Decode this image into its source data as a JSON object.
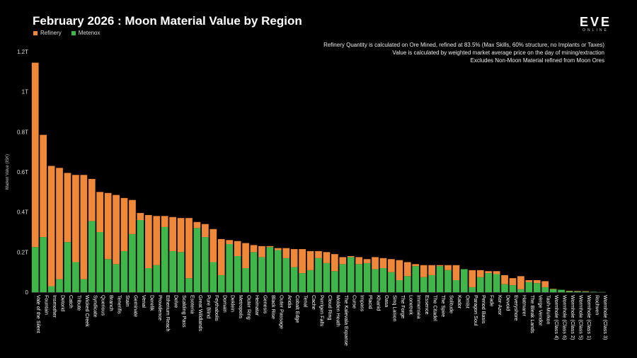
{
  "logo": {
    "text": "EVE",
    "sub": "ONLINE"
  },
  "notes": [
    "Refinery Quantity is calculated on Ore Mined, refined at 83.5% (Max Skills, 60% structure, no Implants or Taxes)",
    "Value is calculated by weighted market average price on the day of mining/extraction",
    "Excludes Non-Moon Material refined from Moon Ores"
  ],
  "chart_data": {
    "type": "bar",
    "stacked": true,
    "title": "February 2026 : Moon Material Value by Region",
    "ylabel": "Market Value (ISK)",
    "ylim": [
      0,
      1.2
    ],
    "yticks": [
      0,
      0.2,
      0.4,
      0.6,
      0.8,
      1.0,
      1.2
    ],
    "ytick_labels": [
      "0",
      "0.2T",
      "0.4T",
      "0.6T",
      "0.8T",
      "1T",
      "1.2T"
    ],
    "legend_position": "top-left",
    "categories": [
      "Vale of the Silent",
      "Fountain",
      "Insmother",
      "Detorid",
      "Catch",
      "Tribute",
      "Wicked Creek",
      "Syndicate",
      "Querious",
      "Branch",
      "Tenerifis",
      "Stain",
      "Geminate",
      "Venal",
      "Derelik",
      "Providence",
      "Etherium Reach",
      "Delve",
      "Scalding Pass",
      "Esoteria",
      "Great Wildlands",
      "Pure Blind",
      "Feythabolis",
      "Domain",
      "Deklein",
      "Metropolis",
      "Outer Ring",
      "Heimatar",
      "Genesis",
      "Black Rise",
      "Outer Passage",
      "Aridia",
      "Cobalt Edge",
      "Tenal",
      "Cache",
      "Perrigen Falls",
      "Cloud Ring",
      "Molden Heath",
      "The Kalevala Expanse",
      "Curse",
      "Impass",
      "Placid",
      "Khanid",
      "Oasa",
      "Sinq Laison",
      "The Forge",
      "Lonetrek",
      "Immensea",
      "Essence",
      "The Citadel",
      "The Spire",
      "Solitude",
      "Kador",
      "Omist",
      "Paragon Soul",
      "Period Basis",
      "Fade",
      "Kor-Azor",
      "Devoid",
      "Everyshore",
      "Hatmarer",
      "The Bleak Lands",
      "Verge Vendor",
      "Tash-Murkon",
      "Wormhole (Class 4)",
      "Wormhole (Class 6)",
      "Wormhole (Class 2)",
      "Wormhole (Class 5)",
      "Wormhole (Class 1)",
      "Rochven",
      "Wormhole (Class 3)"
    ],
    "series": [
      {
        "name": "Metenox",
        "color": "#3fb54a",
        "values": [
          0.225,
          0.275,
          0.03,
          0.065,
          0.25,
          0.15,
          0.065,
          0.355,
          0.3,
          0.165,
          0.14,
          0.205,
          0.29,
          0.36,
          0.12,
          0.135,
          0.325,
          0.205,
          0.2,
          0.07,
          0.32,
          0.275,
          0.15,
          0.085,
          0.24,
          0.18,
          0.12,
          0.2,
          0.175,
          0.225,
          0.21,
          0.17,
          0.125,
          0.095,
          0.11,
          0.17,
          0.145,
          0.105,
          0.14,
          0.175,
          0.14,
          0.145,
          0.115,
          0.12,
          0.1,
          0.06,
          0.08,
          0.13,
          0.075,
          0.085,
          0.13,
          0.11,
          0.06,
          0.115,
          0.025,
          0.075,
          0.095,
          0.09,
          0.04,
          0.035,
          0.015,
          0.05,
          0.045,
          0.025,
          0.015,
          0.012,
          0.005,
          0.004,
          0.003,
          0.002,
          0.001
        ]
      },
      {
        "name": "Refinery",
        "color": "#f0883a",
        "values": [
          0.92,
          0.51,
          0.6,
          0.555,
          0.345,
          0.435,
          0.52,
          0.21,
          0.2,
          0.33,
          0.345,
          0.265,
          0.17,
          0.035,
          0.265,
          0.245,
          0.055,
          0.17,
          0.17,
          0.3,
          0.03,
          0.065,
          0.165,
          0.18,
          0.02,
          0.075,
          0.125,
          0.035,
          0.055,
          0.005,
          0.01,
          0.05,
          0.09,
          0.12,
          0.095,
          0.035,
          0.055,
          0.085,
          0.035,
          0.005,
          0.035,
          0.02,
          0.06,
          0.05,
          0.065,
          0.1,
          0.07,
          0.01,
          0.06,
          0.05,
          0.005,
          0.025,
          0.075,
          0.0,
          0.085,
          0.035,
          0.01,
          0.015,
          0.045,
          0.035,
          0.065,
          0.01,
          0.015,
          0.03,
          0.002,
          0.0,
          0.002,
          0.002,
          0.002,
          0.0,
          0.0
        ]
      }
    ]
  }
}
